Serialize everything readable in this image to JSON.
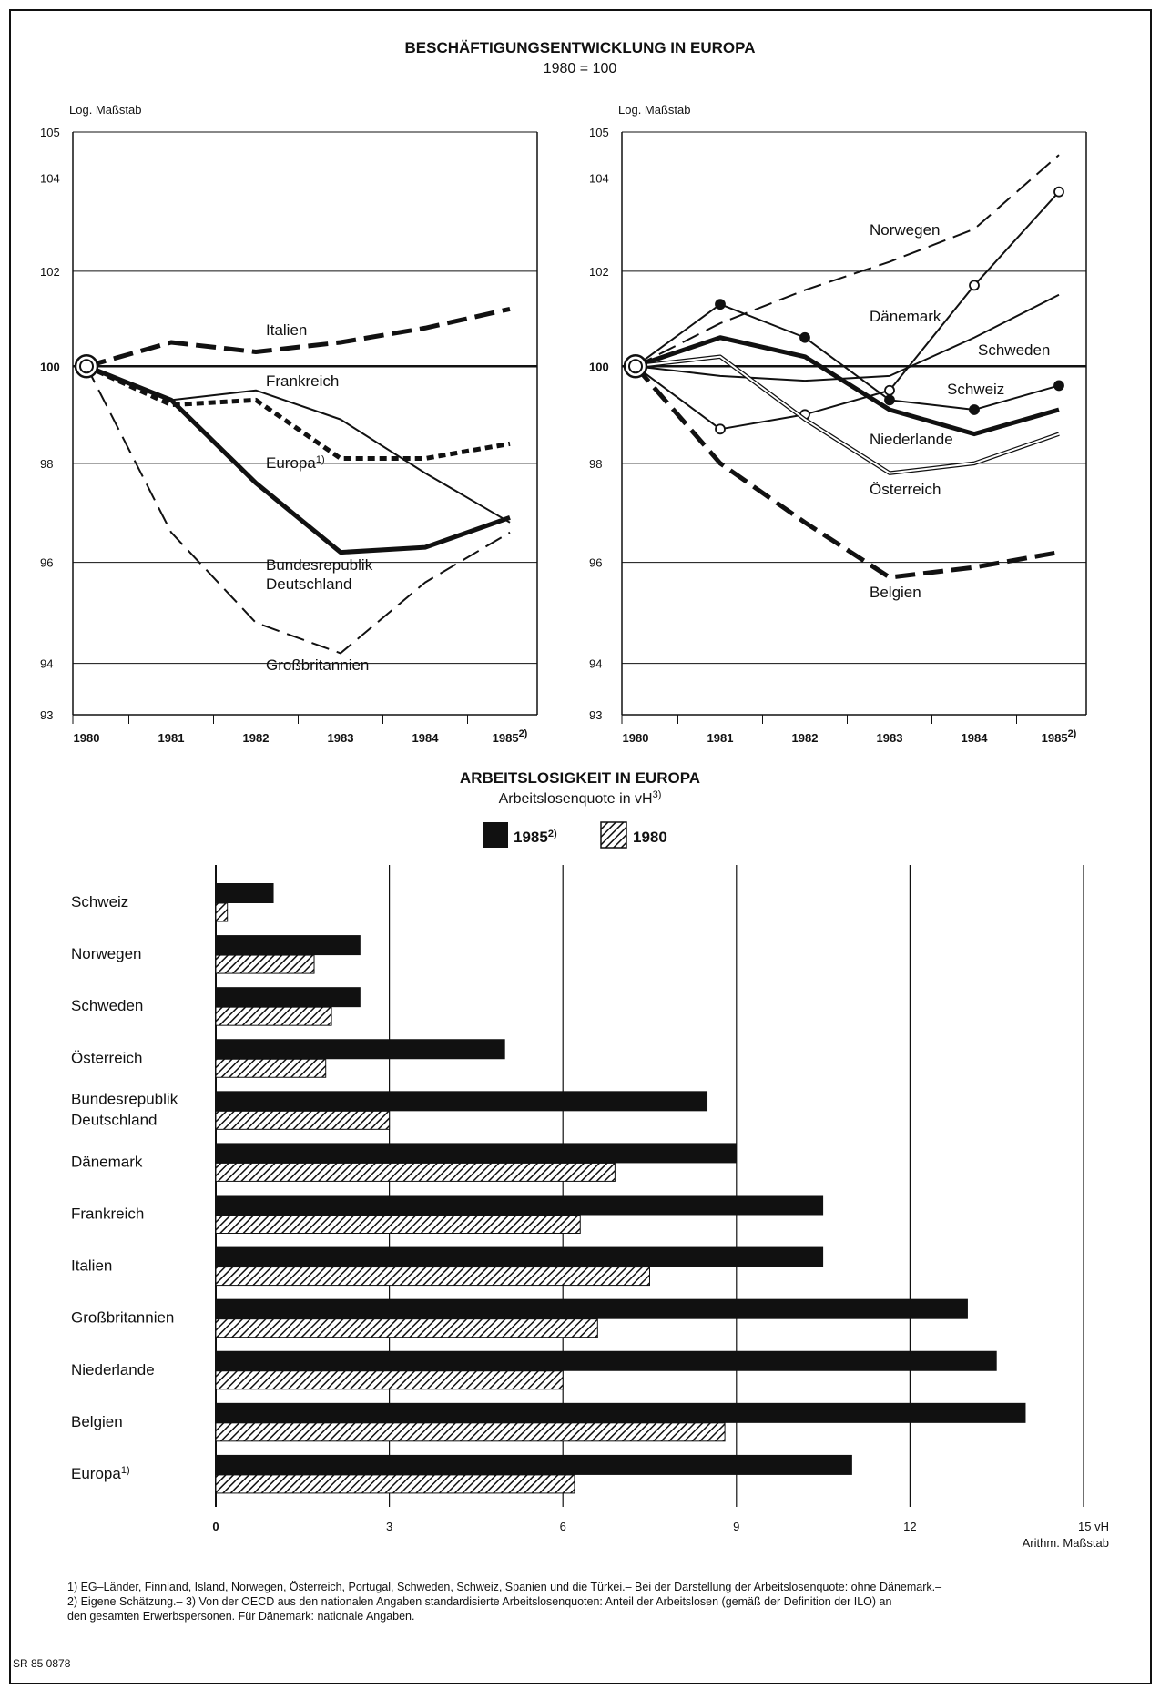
{
  "employment": {
    "title": "BESCHÄFTIGUNGSENTWICKLUNG IN EUROPA",
    "subtitle": "1980 = 100",
    "scale_label": "Log. Maßstab",
    "y_ticks": [
      "105",
      "104",
      "102",
      "100",
      "98",
      "96",
      "94",
      "93"
    ],
    "x_ticks": [
      "1980",
      "1981",
      "1982",
      "1983",
      "1984",
      "1985"
    ],
    "x_last_suffix": "2)",
    "europe_suffix": "1)",
    "chart_data": [
      {
        "type": "line",
        "log_scale": true,
        "ylim": [
          93,
          105
        ],
        "x": [
          1980,
          1981,
          1982,
          1983,
          1984,
          1985
        ],
        "series": [
          {
            "name": "Italien",
            "values": [
              100,
              100.5,
              100.3,
              100.5,
              100.8,
              101.2
            ],
            "style": "thick-dash"
          },
          {
            "name": "Frankreich",
            "values": [
              100,
              99.3,
              99.5,
              98.9,
              97.8,
              96.8
            ],
            "style": "thin"
          },
          {
            "name": "Europa",
            "values": [
              100,
              99.2,
              99.3,
              98.1,
              98.1,
              98.4
            ],
            "style": "thick-dot"
          },
          {
            "name": "Bundesrepublik Deutschland",
            "values": [
              100,
              99.3,
              97.6,
              96.2,
              96.3,
              96.9
            ],
            "style": "thick"
          },
          {
            "name": "Großbritannien",
            "values": [
              100,
              96.6,
              94.8,
              94.2,
              95.6,
              96.6
            ],
            "style": "thin-dash"
          }
        ]
      },
      {
        "type": "line",
        "log_scale": true,
        "ylim": [
          93,
          105
        ],
        "x": [
          1980,
          1981,
          1982,
          1983,
          1984,
          1985
        ],
        "series": [
          {
            "name": "Norwegen",
            "values": [
              100,
              100.9,
              101.6,
              102.2,
              102.9,
              104.5
            ],
            "style": "thin-dash"
          },
          {
            "name": "Dänemark",
            "values": [
              100,
              98.7,
              99.0,
              99.5,
              101.7,
              103.7
            ],
            "style": "thin-hollow"
          },
          {
            "name": "Schweden",
            "values": [
              100,
              99.8,
              99.7,
              99.8,
              100.6,
              101.5
            ],
            "style": "thin"
          },
          {
            "name": "Schweiz",
            "values": [
              100,
              101.3,
              100.6,
              99.3,
              99.1,
              99.6
            ],
            "style": "thin-filled"
          },
          {
            "name": "Niederlande",
            "values": [
              100,
              100.6,
              100.2,
              99.1,
              98.6,
              99.1
            ],
            "style": "thick"
          },
          {
            "name": "Österreich",
            "values": [
              100,
              100.2,
              98.9,
              97.8,
              98.0,
              98.6
            ],
            "style": "double"
          },
          {
            "name": "Belgien",
            "values": [
              100,
              98.0,
              96.8,
              95.7,
              95.9,
              96.2
            ],
            "style": "thick-dash"
          }
        ]
      }
    ]
  },
  "unemployment": {
    "title": "ARBEITSLOSIGKEIT IN EUROPA",
    "subtitle": "Arbeitslosenquote in vH",
    "subtitle_suffix": "3)",
    "axis_unit": "15 vH",
    "scale_label": "Arithm. Maßstab",
    "x_ticks": [
      "0",
      "3",
      "6",
      "9",
      "12"
    ],
    "chart_data": {
      "type": "bar",
      "orientation": "horizontal",
      "xlim": [
        0,
        15
      ],
      "categories": [
        "Schweiz",
        "Norwegen",
        "Schweden",
        "Österreich",
        "Bundesrepublik Deutschland",
        "Dänemark",
        "Frankreich",
        "Italien",
        "Großbritannien",
        "Niederlande",
        "Belgien",
        "Europa"
      ],
      "category_lines": [
        [
          "Schweiz"
        ],
        [
          "Norwegen"
        ],
        [
          "Schweden"
        ],
        [
          "Österreich"
        ],
        [
          "Bundesrepublik",
          "Deutschland"
        ],
        [
          "Dänemark"
        ],
        [
          "Frankreich"
        ],
        [
          "Italien"
        ],
        [
          "Großbritannien"
        ],
        [
          "Niederlande"
        ],
        [
          "Belgien"
        ],
        [
          "Europa"
        ]
      ],
      "category_suffixes": [
        "",
        "",
        "",
        "",
        "",
        "",
        "",
        "",
        "",
        "",
        "",
        "1)"
      ],
      "series": [
        {
          "name": "1985",
          "name_suffix": "2)",
          "fill": "solid",
          "values": [
            1.0,
            2.5,
            2.5,
            5.0,
            8.5,
            9.0,
            10.5,
            10.5,
            13.0,
            13.5,
            14.0,
            11.0
          ]
        },
        {
          "name": "1980",
          "fill": "hatched",
          "values": [
            0.2,
            1.7,
            2.0,
            1.9,
            3.0,
            6.9,
            6.3,
            7.5,
            6.6,
            6.0,
            8.8,
            6.2
          ]
        }
      ]
    }
  },
  "footnotes": [
    "1) EG–Länder, Finnland, Island, Norwegen, Österreich, Portugal, Schweden, Schweiz, Spanien und die Türkei.– Bei der Darstellung der Arbeitslosenquote: ohne Dänemark.–",
    "2) Eigene Schätzung.– 3) Von der OECD aus den nationalen Angaben standardisierte Arbeitslosenquoten: Anteil der Arbeitslosen (gemäß der Definition der ILO) an",
    "den gesamten Erwerbspersonen. Für Dänemark: nationale Angaben."
  ],
  "source_code": "SR 85 0878",
  "colors": {
    "ink": "#111111",
    "paper": "#ffffff"
  }
}
